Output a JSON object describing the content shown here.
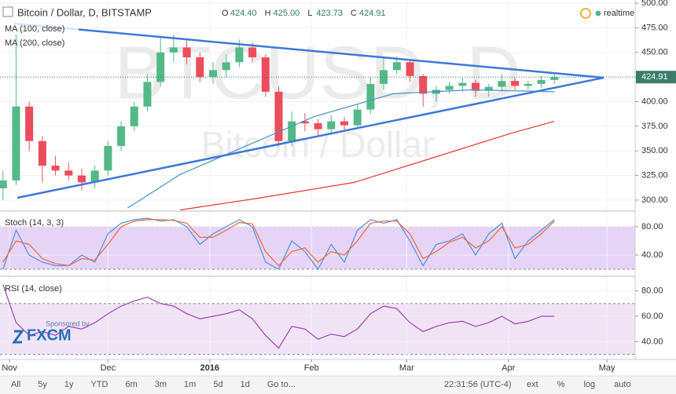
{
  "header": {
    "symbol": "Bitcoin / Dollar, D, BITSTAMP",
    "ohlc": [
      {
        "key": "O",
        "value": "424.40"
      },
      {
        "key": "H",
        "value": "425.00"
      },
      {
        "key": "L",
        "value": "423.73"
      },
      {
        "key": "C",
        "value": "424.91"
      }
    ],
    "status": "realtime"
  },
  "sponsor": {
    "label": "Sponsored by",
    "name": "FXCM"
  },
  "toolbar": {
    "items": [
      "All",
      "5y",
      "1y",
      "YTD",
      "6m",
      "3m",
      "1m",
      "5d",
      "1d",
      "Go to..."
    ],
    "time": "22:31:56 (UTC-4)",
    "options": [
      "ext",
      "%",
      "log",
      "auto"
    ]
  },
  "chart_data": [
    {
      "type": "candlestick",
      "watermark": [
        "BTCUSD, D",
        "Bitcoin / Dollar"
      ],
      "x": [
        -2,
        2,
        6,
        10,
        14,
        18,
        22,
        26,
        30,
        34,
        38,
        42,
        46,
        50,
        54,
        58,
        62,
        66,
        70,
        74,
        78,
        82,
        86,
        90,
        94,
        98,
        102,
        106,
        110,
        114,
        118,
        122,
        126,
        130,
        134,
        138,
        142,
        146,
        150,
        154,
        158,
        162,
        166
      ],
      "open": [
        312,
        320,
        395,
        360,
        335,
        330,
        325,
        318,
        330,
        355,
        375,
        395,
        420,
        450,
        455,
        445,
        425,
        432,
        440,
        455,
        445,
        410,
        360,
        380,
        378,
        372,
        380,
        376,
        392,
        418,
        432,
        440,
        426,
        408,
        412,
        416,
        419,
        411,
        415,
        421,
        416,
        418,
        422
      ],
      "high": [
        330,
        480,
        400,
        365,
        345,
        338,
        332,
        335,
        360,
        380,
        400,
        428,
        465,
        468,
        462,
        450,
        440,
        448,
        463,
        460,
        448,
        415,
        390,
        388,
        382,
        386,
        384,
        398,
        425,
        445,
        446,
        442,
        428,
        416,
        420,
        424,
        422,
        418,
        428,
        424,
        421,
        426,
        428
      ],
      "low": [
        300,
        315,
        350,
        318,
        325,
        320,
        310,
        312,
        325,
        350,
        370,
        390,
        415,
        440,
        438,
        420,
        418,
        425,
        435,
        440,
        405,
        355,
        355,
        370,
        365,
        366,
        370,
        372,
        388,
        412,
        428,
        420,
        395,
        400,
        408,
        410,
        405,
        405,
        410,
        412,
        412,
        414,
        418
      ],
      "close": [
        320,
        395,
        360,
        335,
        330,
        325,
        318,
        330,
        355,
        375,
        395,
        420,
        450,
        455,
        445,
        425,
        432,
        440,
        455,
        445,
        410,
        360,
        380,
        378,
        372,
        380,
        376,
        392,
        418,
        432,
        440,
        426,
        408,
        412,
        416,
        419,
        411,
        415,
        421,
        416,
        418,
        422,
        425
      ],
      "up_color": "#53b987",
      "down_color": "#eb4d5c",
      "series": [
        {
          "name": "MA (100, close)",
          "color": "#4a90c8",
          "x": [
            36,
            52,
            70,
            93,
            117,
            141,
            166
          ],
          "values": [
            292,
            326,
            352,
            385,
            408,
            412,
            410
          ]
        },
        {
          "name": "MA (200, close)",
          "color": "#e8362d",
          "x": [
            52,
            76,
            105,
            129,
            153,
            166
          ],
          "values": [
            290,
            302,
            318,
            343,
            368,
            380
          ]
        }
      ],
      "last_price": 424.91,
      "xlim": [
        -2.9,
        190.6
      ],
      "ylim": [
        289.6,
        503.2
      ],
      "yticks": [
        {
          "value": 300,
          "label": "300.00"
        },
        {
          "value": 325,
          "label": "325.00"
        },
        {
          "value": 350,
          "label": "350.00"
        },
        {
          "value": 375,
          "label": "375.00"
        },
        {
          "value": 400,
          "label": "400.00"
        },
        {
          "value": 425,
          "label": "425.00"
        },
        {
          "value": 450,
          "label": "450.00"
        },
        {
          "value": 475,
          "label": "475.00"
        },
        {
          "value": 500,
          "label": "500.00"
        }
      ]
    },
    {
      "type": "line",
      "title": "Stoch (14, 3, 3)",
      "x": [
        -2,
        2,
        6,
        10,
        14,
        18,
        22,
        26,
        30,
        34,
        38,
        42,
        46,
        50,
        54,
        58,
        62,
        66,
        70,
        74,
        78,
        82,
        86,
        90,
        94,
        98,
        102,
        106,
        110,
        114,
        118,
        122,
        126,
        130,
        134,
        138,
        142,
        146,
        150,
        154,
        158,
        162,
        166
      ],
      "series": [
        {
          "color": "#4a90e2",
          "values": [
            20,
            75,
            40,
            30,
            25,
            25,
            40,
            30,
            70,
            85,
            90,
            92,
            88,
            90,
            80,
            55,
            70,
            80,
            90,
            80,
            30,
            20,
            60,
            45,
            20,
            55,
            30,
            75,
            90,
            85,
            90,
            60,
            25,
            55,
            60,
            70,
            40,
            70,
            85,
            35,
            60,
            75,
            90
          ]
        },
        {
          "color": "#f0643c",
          "values": [
            30,
            60,
            55,
            35,
            28,
            25,
            35,
            33,
            55,
            80,
            88,
            90,
            90,
            89,
            85,
            65,
            65,
            75,
            86,
            84,
            45,
            25,
            45,
            50,
            30,
            45,
            40,
            60,
            85,
            88,
            88,
            70,
            35,
            45,
            58,
            65,
            50,
            60,
            80,
            50,
            55,
            70,
            88
          ]
        }
      ],
      "band": [
        20,
        80
      ],
      "band_color": "#e6d4f7",
      "xlim": [
        -2.9,
        190.6
      ],
      "ylim": [
        12.2,
        101
      ],
      "yticks": [
        {
          "value": 40,
          "label": "40.00"
        },
        {
          "value": 80,
          "label": "80.00"
        }
      ]
    },
    {
      "type": "line",
      "title": "RSI (14, close)",
      "x": [
        -2,
        2,
        6,
        10,
        14,
        18,
        22,
        26,
        30,
        34,
        38,
        42,
        46,
        50,
        54,
        58,
        62,
        66,
        70,
        74,
        78,
        82,
        86,
        90,
        94,
        98,
        102,
        106,
        110,
        114,
        118,
        122,
        126,
        130,
        134,
        138,
        142,
        146,
        150,
        154,
        158,
        162,
        166
      ],
      "series": [
        {
          "color": "#a040b8",
          "values": [
            85,
            55,
            45,
            48,
            45,
            52,
            50,
            55,
            62,
            68,
            72,
            75,
            70,
            68,
            62,
            58,
            60,
            62,
            65,
            58,
            45,
            35,
            52,
            50,
            42,
            46,
            44,
            50,
            62,
            68,
            66,
            55,
            48,
            52,
            55,
            56,
            52,
            55,
            60,
            54,
            56,
            60,
            60
          ]
        }
      ],
      "band": [
        30,
        70
      ],
      "band_color": "#f1e3f6",
      "xlim": [
        -2.9,
        190.6
      ],
      "ylim": [
        27.3,
        90.8
      ],
      "yticks": [
        {
          "value": 40,
          "label": "40.00"
        },
        {
          "value": 60,
          "label": "60.00"
        },
        {
          "value": 80,
          "label": "80.00"
        }
      ],
      "xticks": [
        {
          "value": 0,
          "label": "Nov"
        },
        {
          "value": 30,
          "label": "Dec"
        },
        {
          "value": 61,
          "label": "2016"
        },
        {
          "value": 92,
          "label": "Feb"
        },
        {
          "value": 121,
          "label": "Mar"
        },
        {
          "value": 152,
          "label": "Apr"
        },
        {
          "value": 182,
          "label": "May"
        }
      ]
    }
  ]
}
